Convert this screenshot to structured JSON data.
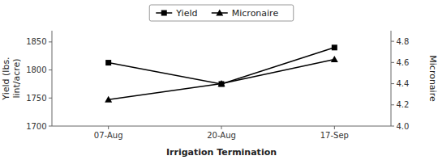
{
  "chart_data": {
    "type": "line",
    "categories": [
      "07-Aug",
      "20-Aug",
      "17-Sep"
    ],
    "xlabel": "Irrigation Termination",
    "ylabel": "Yield (lbs.\nlint/acre)",
    "y2label": "Micronaire",
    "ylim": [
      1700,
      1870
    ],
    "yticks": [
      1700,
      1750,
      1800,
      1850
    ],
    "y2lim": [
      4.0,
      4.9
    ],
    "y2ticks": [
      {
        "value": 4.0,
        "label": "4.0"
      },
      4.2,
      4.4,
      4.6,
      4.8
    ],
    "grid": false,
    "legend": "top",
    "series": [
      {
        "name": "Yield",
        "color": "#000000",
        "marker": "square",
        "values": [
          1813,
          1775,
          1840
        ]
      },
      {
        "name": "Micronaire",
        "color": "#000000",
        "marker": "triangle",
        "axis": "y2",
        "values": [
          4.25,
          4.4,
          4.63
        ]
      }
    ]
  }
}
